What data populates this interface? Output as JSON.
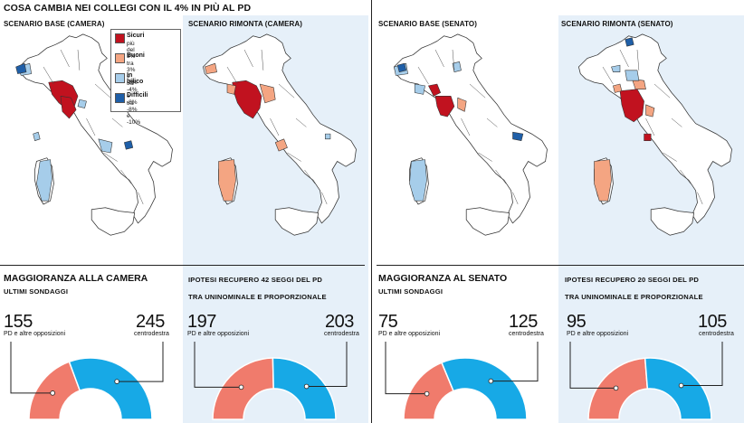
{
  "title": "COSA CAMBIA NEI COLLEGI CON IL 4% IN PIÙ AL PD",
  "maps": [
    {
      "label": "SCENARIO BASE (CAMERA)"
    },
    {
      "label": "SCENARIO RIMONTA (CAMERA)"
    },
    {
      "label": "SCENARIO BASE (SENATO)"
    },
    {
      "label": "SCENARIO RIMONTA (SENATO)"
    }
  ],
  "legend": [
    {
      "title": "Sicuri",
      "range": "più del 3%",
      "color": "#c1121f"
    },
    {
      "title": "Buoni",
      "range": "tra 3% e -3%",
      "color": "#f4a582"
    },
    {
      "title": "In bilico",
      "range": "tra -4% e -8%",
      "color": "#a6cdea"
    },
    {
      "title": "Difficili",
      "range": "tra -8% e -10%",
      "color": "#1f5fa8"
    }
  ],
  "colors": {
    "pd": "#f07b6c",
    "cdx": "#17a9e6",
    "other": "#c9d4e6",
    "panel_bg": "#e6f0f9"
  },
  "sections": {
    "camera": {
      "title": "MAGGIORANZA ALLA CAMERA",
      "subtitle": "ULTIMI SONDAGGI"
    },
    "senato": {
      "title": "MAGGIORANZA AL SENATO",
      "subtitle": "ULTIMI SONDAGGI"
    },
    "camera_hyp": {
      "line1": "IPOTESI RECUPERO 42 SEGGI DEL PD",
      "line2": "TRA UNINOMINALE E PROPORZIONALE"
    },
    "senato_hyp": {
      "line1": "IPOTESI RECUPERO 20 SEGGI DEL PD",
      "line2": "TRA UNINOMINALE E PROPORZIONALE"
    }
  },
  "gauges": [
    {
      "left_value": "155",
      "left_label": "PD e altre opposizioni",
      "right_value": "245",
      "right_label": "centrodestra",
      "pd": 155,
      "cdx": 245,
      "other": 0
    },
    {
      "left_value": "197",
      "left_label": "PD e altre opposizioni",
      "right_value": "203",
      "right_label": "centrodestra",
      "pd": 197,
      "cdx": 203,
      "other": 0
    },
    {
      "left_value": "75",
      "left_label": "PD e altre opposizioni",
      "right_value": "125",
      "right_label": "centrodestra",
      "pd": 75,
      "cdx": 125,
      "other": 0
    },
    {
      "left_value": "95",
      "left_label": "PD e altre opposizioni",
      "right_value": "105",
      "right_label": "centrodestra",
      "pd": 95,
      "cdx": 105,
      "other": 0
    }
  ]
}
